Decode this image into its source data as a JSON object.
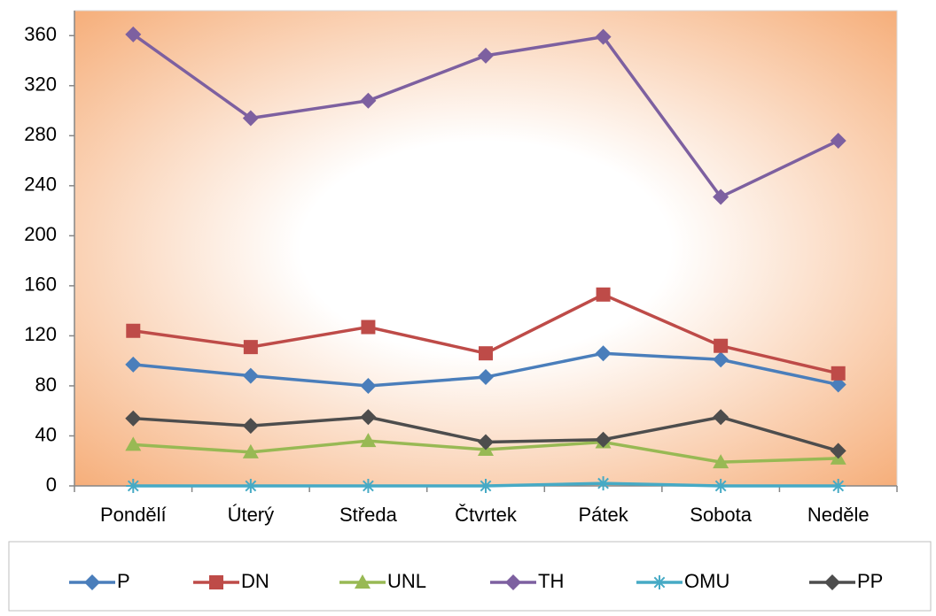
{
  "chart_data": {
    "type": "line",
    "categories": [
      "Pondělí",
      "Úterý",
      "Středa",
      "Čtvrtek",
      "Pátek",
      "Sobota",
      "Neděle"
    ],
    "series": [
      {
        "name": "P",
        "color": "#4a7ebb",
        "marker": "diamond",
        "values": [
          97,
          88,
          80,
          87,
          106,
          101,
          81
        ]
      },
      {
        "name": "DN",
        "color": "#be4b48",
        "marker": "square",
        "values": [
          124,
          111,
          127,
          106,
          153,
          112,
          90
        ]
      },
      {
        "name": "UNL",
        "color": "#98b954",
        "marker": "triangle",
        "values": [
          33,
          27,
          36,
          29,
          35,
          19,
          22
        ]
      },
      {
        "name": "TH",
        "color": "#7d60a0",
        "marker": "diamond",
        "values": [
          361,
          294,
          308,
          344,
          359,
          231,
          276
        ]
      },
      {
        "name": "OMU",
        "color": "#46aac5",
        "marker": "star",
        "values": [
          0,
          0,
          0,
          0,
          2,
          0,
          0
        ]
      },
      {
        "name": "PP",
        "color": "#4d4d4d",
        "marker": "diamond",
        "values": [
          54,
          48,
          55,
          35,
          37,
          55,
          28
        ]
      }
    ],
    "ylim": [
      0,
      380
    ],
    "yticks": [
      0,
      40,
      80,
      120,
      160,
      200,
      240,
      280,
      320,
      360
    ],
    "grid": false,
    "legend": "bottom"
  }
}
